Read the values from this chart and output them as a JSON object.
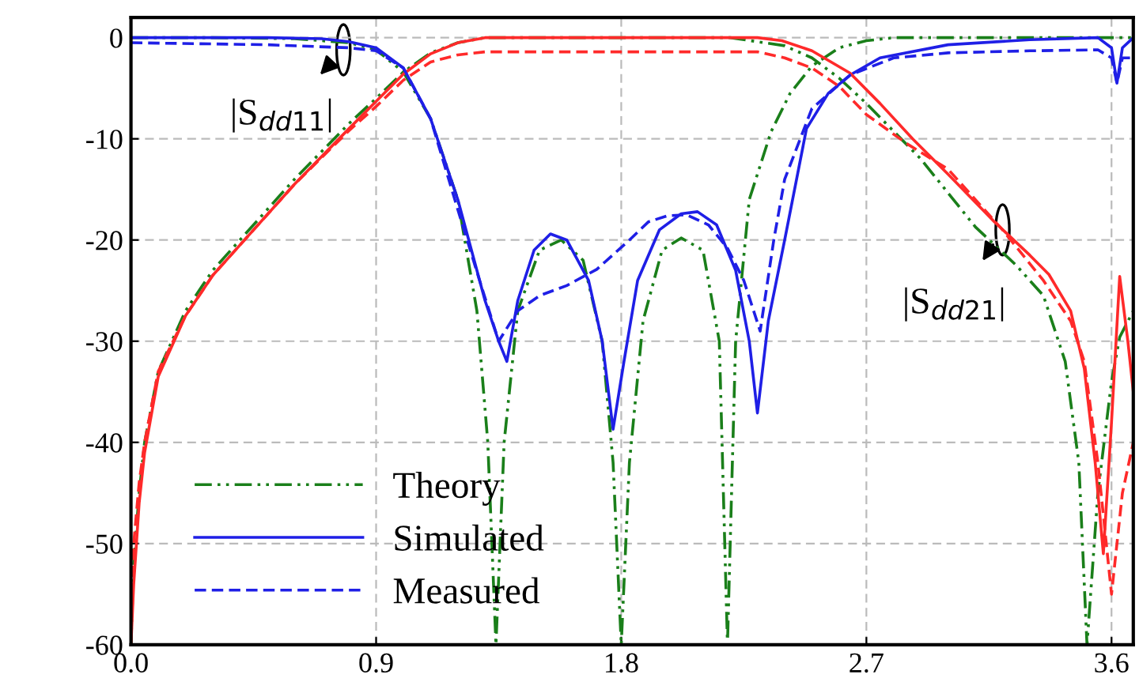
{
  "chart_data": {
    "type": "line",
    "xlim": [
      0,
      3.68
    ],
    "ylim": [
      -60,
      2
    ],
    "xticks": [
      {
        "value": 0,
        "label": "0.0"
      },
      0.9,
      1.8,
      2.7,
      3.6
    ],
    "yticks": [
      -60,
      -50,
      -40,
      -30,
      -20,
      -10,
      0
    ],
    "grid": true,
    "legend": "bottom left",
    "annotations": [
      {
        "text": "|S$_{dd11}$|",
        "x": 0.78,
        "y": -1.2
      },
      {
        "text": "|S$_{dd21}$|",
        "x": 3.2,
        "y": -19
      }
    ],
    "series": [
      {
        "name": "Theory",
        "color": "#1a7f1a",
        "line_style": "dashdot",
        "x": [
          0,
          0.3,
          0.6,
          0.8,
          0.9,
          1.0,
          1.1,
          1.2,
          1.27,
          1.31,
          1.34,
          1.37,
          1.42,
          1.5,
          1.58,
          1.66,
          1.73,
          1.77,
          1.8,
          1.83,
          1.88,
          1.95,
          2.02,
          2.1,
          2.16,
          2.19,
          2.22,
          2.27,
          2.35,
          2.42,
          2.5,
          2.6,
          2.7,
          2.8,
          3.0,
          3.3,
          3.68
        ],
        "values": [
          0,
          0,
          -0.1,
          -0.5,
          -1.2,
          -3.4,
          -8,
          -16,
          -27,
          -40,
          -60,
          -40,
          -27,
          -21,
          -20,
          -22,
          -30,
          -42,
          -60,
          -42,
          -28,
          -21,
          -19.8,
          -21,
          -30,
          -60,
          -30,
          -16,
          -9.3,
          -5.5,
          -2.8,
          -1,
          -0.3,
          0,
          0,
          0,
          0
        ]
      },
      {
        "color": "#1a7f1a",
        "line_style": "dashdot",
        "x": [
          0,
          0.01,
          0.03,
          0.05,
          0.1,
          0.2,
          0.3,
          0.4,
          0.6,
          0.8,
          0.9,
          1.0,
          1.1,
          1.2,
          1.3,
          2.2,
          2.4,
          2.5,
          2.6,
          2.7,
          2.9,
          3.1,
          3.25,
          3.35,
          3.43,
          3.48,
          3.51,
          3.55,
          3.6,
          3.63,
          3.68
        ],
        "values": [
          -60,
          -52,
          -45,
          -40,
          -33,
          -27,
          -23,
          -20,
          -14,
          -8.5,
          -6,
          -3.4,
          -1.5,
          -0.5,
          0,
          0,
          -0.8,
          -2,
          -4,
          -6.5,
          -12,
          -18.7,
          -22.5,
          -25.5,
          -32,
          -42,
          -60,
          -45,
          -34,
          -29.6,
          -27
        ]
      },
      {
        "name": "Simulated",
        "color": "#1f1fe6",
        "line_style": "solid",
        "x": [
          0,
          0.5,
          0.7,
          0.8,
          0.9,
          1.0,
          1.1,
          1.2,
          1.3,
          1.35,
          1.38,
          1.42,
          1.48,
          1.54,
          1.6,
          1.68,
          1.73,
          1.77,
          1.81,
          1.86,
          1.94,
          2.02,
          2.08,
          2.15,
          2.22,
          2.27,
          2.3,
          2.34,
          2.4,
          2.48,
          2.56,
          2.64,
          2.75,
          3.0,
          3.3,
          3.55,
          3.6,
          3.62,
          3.64,
          3.68
        ],
        "values": [
          0,
          0,
          -0.1,
          -0.4,
          -1,
          -3,
          -8,
          -16,
          -26,
          -30,
          -32,
          -26,
          -21,
          -19.4,
          -20,
          -24,
          -30,
          -38.7,
          -32,
          -24,
          -19,
          -17.4,
          -17.2,
          -18.5,
          -23,
          -30,
          -37.1,
          -28,
          -20,
          -9,
          -5.5,
          -3.7,
          -2,
          -0.7,
          -0.2,
          0,
          -1,
          -4.5,
          -1,
          0
        ]
      },
      {
        "color": "#ff2a2a",
        "line_style": "solid",
        "x": [
          0,
          0.01,
          0.03,
          0.05,
          0.1,
          0.2,
          0.3,
          0.4,
          0.6,
          0.8,
          0.9,
          1.0,
          1.1,
          1.2,
          1.3,
          2.3,
          2.39,
          2.5,
          2.64,
          2.75,
          2.87,
          3.0,
          3.17,
          3.3,
          3.37,
          3.45,
          3.5,
          3.54,
          3.57,
          3.6,
          3.63,
          3.66,
          3.68
        ],
        "values": [
          -60,
          -54,
          -46,
          -41,
          -33.5,
          -27.5,
          -23.5,
          -20.5,
          -14.5,
          -9,
          -6.3,
          -3.6,
          -1.6,
          -0.5,
          0,
          0,
          -0.3,
          -1.3,
          -3.5,
          -6.5,
          -10,
          -13.5,
          -18.2,
          -21.5,
          -23.4,
          -27,
          -32.7,
          -42,
          -51,
          -38,
          -23.6,
          -30,
          -35
        ]
      },
      {
        "name": "Measured",
        "color": "#1f1fe6",
        "line_style": "dashed",
        "x": [
          0,
          0.5,
          0.8,
          0.9,
          1.0,
          1.1,
          1.2,
          1.28,
          1.35,
          1.42,
          1.5,
          1.6,
          1.71,
          1.83,
          1.9,
          1.97,
          2.04,
          2.12,
          2.19,
          2.25,
          2.31,
          2.36,
          2.4,
          2.5,
          2.64,
          2.8,
          3.0,
          3.3,
          3.55,
          3.6,
          3.62,
          3.64,
          3.68
        ],
        "values": [
          -0.5,
          -0.7,
          -1,
          -1.3,
          -3,
          -8,
          -17,
          -24,
          -30,
          -27,
          -25.5,
          -24.5,
          -22.9,
          -20,
          -18.2,
          -17.6,
          -17.5,
          -18.5,
          -20.8,
          -24,
          -29,
          -20,
          -14,
          -7,
          -3.7,
          -2,
          -1.5,
          -1.3,
          -1.2,
          -2,
          -4.5,
          -2,
          -2
        ]
      },
      {
        "color": "#ff2a2a",
        "line_style": "dashed",
        "x": [
          0,
          0.01,
          0.03,
          0.05,
          0.1,
          0.2,
          0.3,
          0.4,
          0.6,
          0.8,
          0.9,
          1.0,
          1.1,
          1.2,
          1.3,
          2.3,
          2.4,
          2.5,
          2.6,
          2.7,
          2.85,
          3.0,
          3.2,
          3.35,
          3.45,
          3.5,
          3.55,
          3.6,
          3.64,
          3.68
        ],
        "values": [
          -55,
          -50,
          -44,
          -40,
          -33,
          -27.5,
          -23.5,
          -20.5,
          -14.5,
          -9.2,
          -6.8,
          -4.2,
          -2.4,
          -1.7,
          -1.4,
          -1.4,
          -2,
          -3,
          -4.8,
          -7.6,
          -10.5,
          -13,
          -19,
          -24,
          -28,
          -32,
          -42,
          -55,
          -45,
          -40
        ]
      }
    ]
  }
}
